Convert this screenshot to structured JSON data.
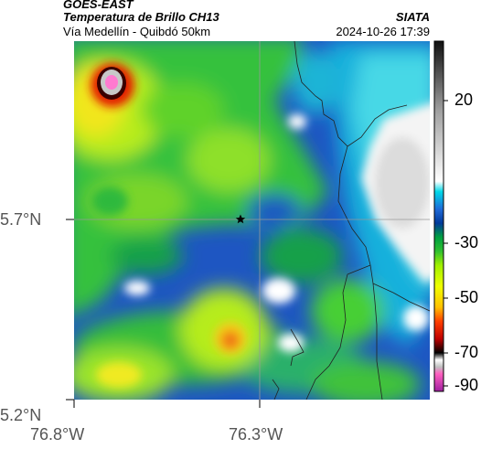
{
  "header": {
    "satellite": "GOES-EAST",
    "product": "Temperatura de Brillo CH13",
    "route": "Vía Medellín - Quibdó 50km",
    "source": "SIATA",
    "timestamp": "2024-10-26 17:39"
  },
  "axes": {
    "lat_labels": [
      "5.7°N",
      "5.2°N"
    ],
    "lon_labels": [
      "76.8°W",
      "76.3°W"
    ]
  },
  "colorbar": {
    "tick_labels": [
      "20",
      "-30",
      "-50",
      "-70",
      "-90"
    ]
  },
  "marker": {
    "name": "star-marker"
  }
}
